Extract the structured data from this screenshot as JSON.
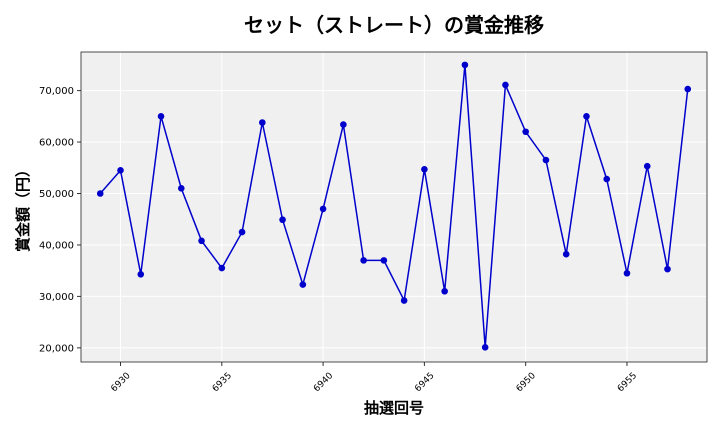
{
  "chart_data": {
    "type": "line",
    "title": "セット（ストレート）の賞金推移",
    "xlabel": "抽選回号",
    "ylabel": "賞金額（円）",
    "xlim": [
      6928.05,
      6958.95
    ],
    "ylim": [
      17250,
      77500
    ],
    "x_ticks": [
      6930,
      6935,
      6940,
      6945,
      6950,
      6955
    ],
    "y_ticks": [
      20000,
      30000,
      40000,
      50000,
      60000,
      70000
    ],
    "y_tick_labels": [
      "20,000",
      "30,000",
      "40,000",
      "50,000",
      "60,000",
      "70,000"
    ],
    "grid": true,
    "background": "#f0f0f0",
    "series": [
      {
        "color": "#0000cc",
        "x": [
          6929,
          6930,
          6931,
          6932,
          6933,
          6934,
          6935,
          6936,
          6937,
          6938,
          6939,
          6940,
          6941,
          6942,
          6943,
          6944,
          6945,
          6946,
          6947,
          6948,
          6949,
          6950,
          6951,
          6952,
          6953,
          6954,
          6955,
          6956,
          6957,
          6958
        ],
        "values": [
          50000,
          54500,
          34300,
          65000,
          51000,
          40800,
          35500,
          42500,
          63800,
          44900,
          32300,
          47000,
          63400,
          37000,
          37000,
          29200,
          54700,
          31000,
          75000,
          20100,
          71100,
          62000,
          56500,
          38200,
          65000,
          52800,
          34500,
          55300,
          35300,
          70300
        ]
      }
    ]
  }
}
